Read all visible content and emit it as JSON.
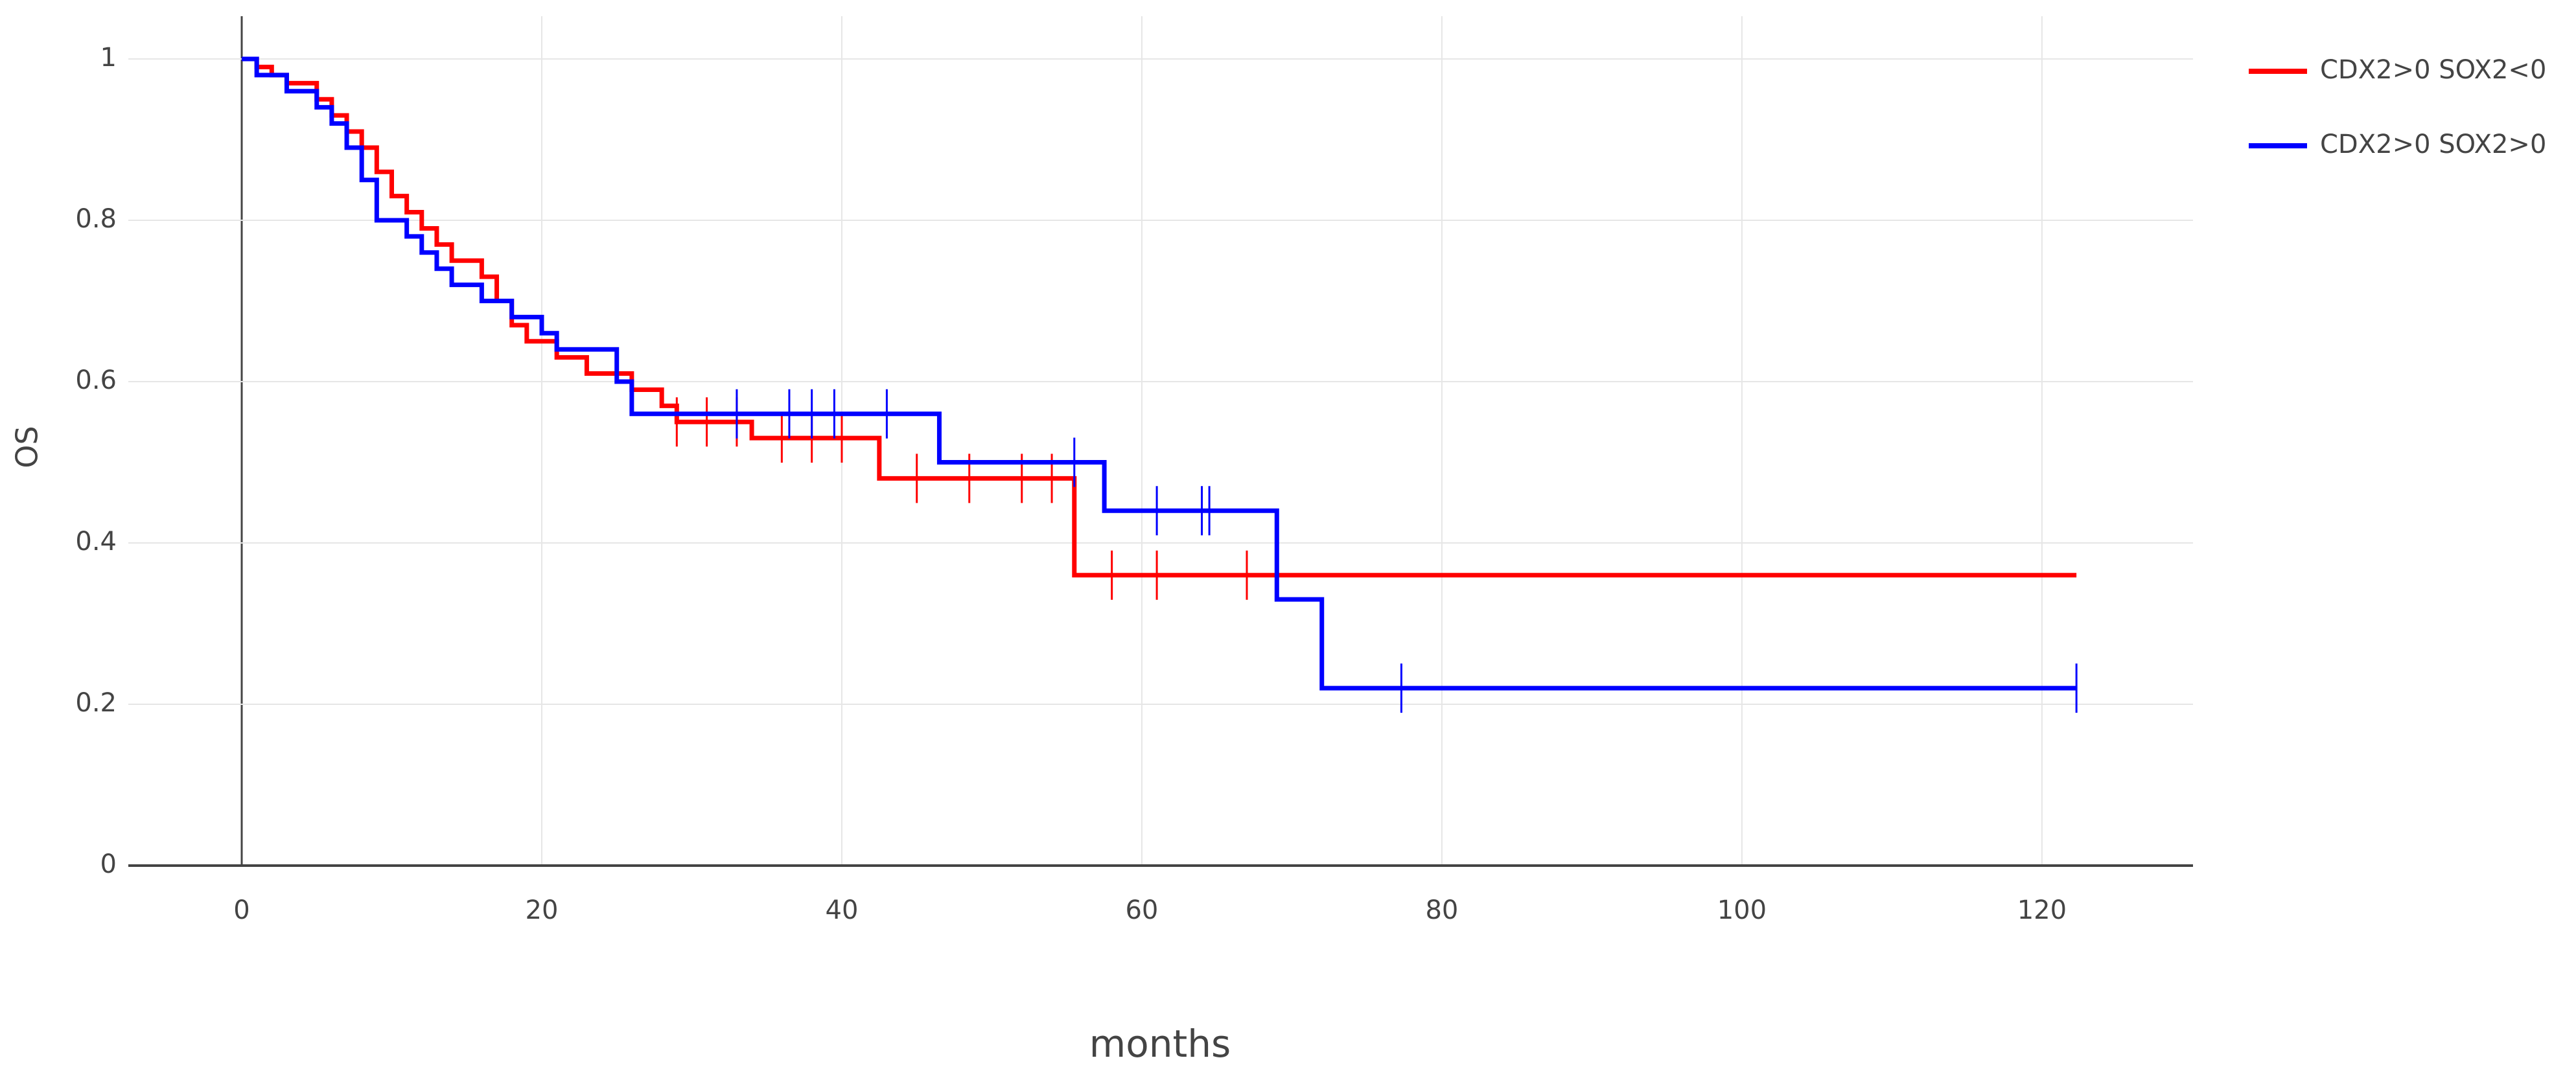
{
  "chart_data": {
    "type": "line",
    "step": true,
    "x_label": "months",
    "y_label": "OS",
    "xlim": [
      -7.56,
      130.07
    ],
    "ylim": [
      0,
      1.053
    ],
    "xticks": [
      0,
      20,
      40,
      60,
      80,
      100,
      120
    ],
    "yticks": [
      0,
      0.2,
      0.4,
      0.6,
      0.8,
      1
    ],
    "grid": true,
    "legend_position": "top-right",
    "series": [
      {
        "name": "CDX2>0 SOX2<0",
        "color": "#ff0000",
        "x": [
          0,
          1,
          2,
          3,
          5,
          6,
          7,
          8,
          9,
          10,
          11,
          12,
          13,
          14,
          16,
          17,
          18,
          19,
          21,
          23,
          26,
          28,
          29,
          34,
          42.5,
          55.5,
          122.3
        ],
        "values": [
          1,
          0.99,
          0.98,
          0.97,
          0.95,
          0.93,
          0.91,
          0.89,
          0.86,
          0.83,
          0.81,
          0.79,
          0.77,
          0.75,
          0.73,
          0.7,
          0.67,
          0.65,
          0.63,
          0.61,
          0.59,
          0.57,
          0.55,
          0.53,
          0.48,
          0.36,
          0.36
        ],
        "censor_x": [
          29,
          31,
          33,
          36,
          38,
          40,
          45,
          48.5,
          52,
          54,
          58,
          61,
          67
        ],
        "censor_values": [
          0.55,
          0.55,
          0.55,
          0.53,
          0.53,
          0.53,
          0.48,
          0.48,
          0.48,
          0.48,
          0.36,
          0.36,
          0.36
        ]
      },
      {
        "name": "CDX2>0 SOX2>0",
        "color": "#0000ff",
        "x": [
          0,
          1,
          3,
          5,
          6,
          7,
          8,
          9,
          11,
          12,
          13,
          14,
          16,
          18,
          20,
          21,
          25,
          26,
          46.5,
          57.5,
          69,
          72,
          122.3
        ],
        "values": [
          1,
          0.98,
          0.96,
          0.94,
          0.92,
          0.89,
          0.85,
          0.8,
          0.78,
          0.76,
          0.74,
          0.72,
          0.7,
          0.68,
          0.66,
          0.64,
          0.6,
          0.56,
          0.5,
          0.44,
          0.33,
          0.22,
          0.22
        ],
        "censor_x": [
          33,
          36.5,
          38,
          39.5,
          43,
          55.5,
          61,
          64,
          64.5,
          77.3,
          122.3
        ],
        "censor_values": [
          0.56,
          0.56,
          0.56,
          0.56,
          0.56,
          0.5,
          0.44,
          0.44,
          0.44,
          0.22,
          0.22
        ]
      }
    ]
  }
}
